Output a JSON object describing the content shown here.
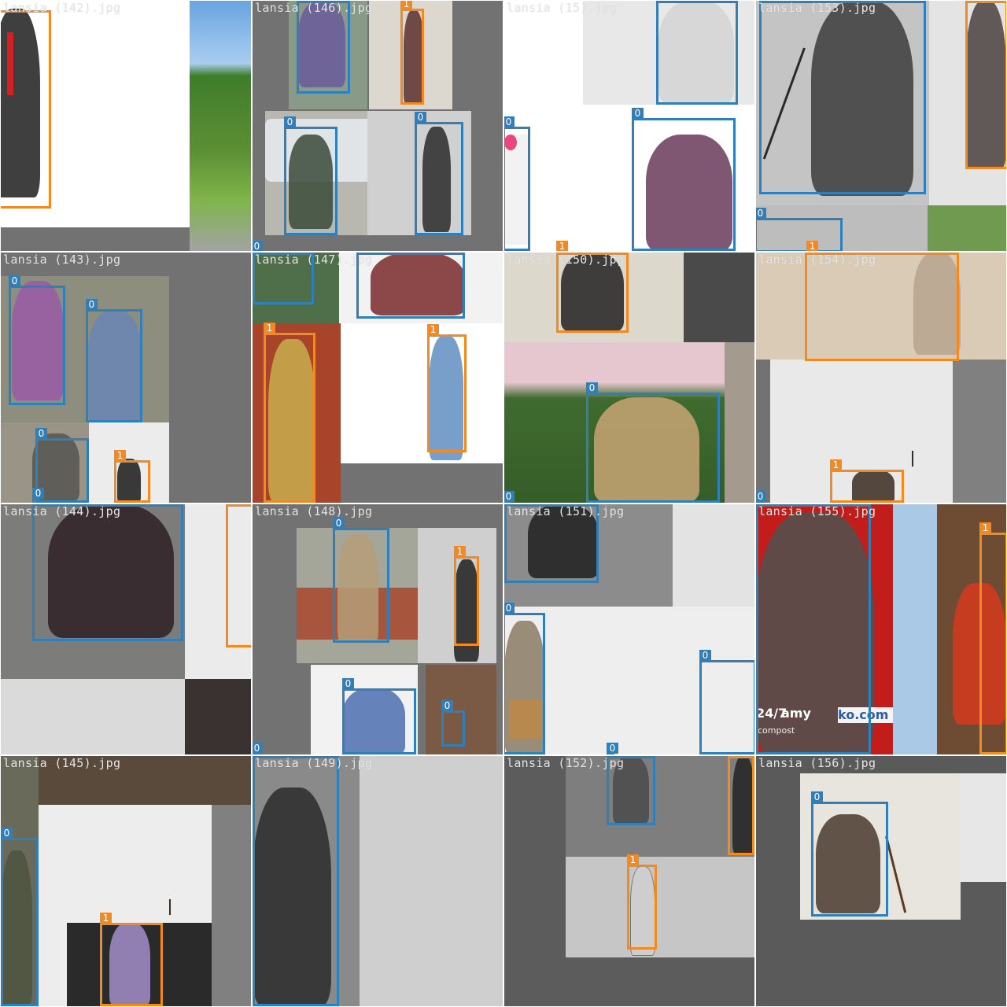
{
  "mosaic": {
    "tiles": [
      {
        "id": "t00",
        "label": "lansia (142).jpg",
        "tags": []
      },
      {
        "id": "t01",
        "label": "lansia (146).jpg",
        "tags": [
          "1",
          "0",
          "0",
          "0"
        ]
      },
      {
        "id": "t02",
        "label": "lansia (15).jpg",
        "tags": [
          "0",
          "0",
          "1"
        ]
      },
      {
        "id": "t03",
        "label": "lansia (153).jpg",
        "tags": [
          "0",
          "1"
        ]
      },
      {
        "id": "t10",
        "label": "lansia (143).jpg",
        "tags": [
          "0",
          "0",
          "0",
          "0",
          "1"
        ]
      },
      {
        "id": "t11",
        "label": "lansia (147).jpg",
        "tags": [
          "1",
          "1"
        ]
      },
      {
        "id": "t12",
        "label": "lansia (150).jpg",
        "tags": [
          "0",
          "0"
        ]
      },
      {
        "id": "t13",
        "label": "lansia (154).jpg",
        "tags": [
          "1",
          "0"
        ]
      },
      {
        "id": "t20",
        "label": "lansia (144).jpg",
        "tags": [
          "1"
        ]
      },
      {
        "id": "t21",
        "label": "lansia (148).jpg",
        "tags": [
          "0",
          "1",
          "0",
          "0",
          "0"
        ]
      },
      {
        "id": "t22",
        "label": "lansia (151).jpg",
        "tags": [
          "0",
          "0",
          "0"
        ]
      },
      {
        "id": "t23",
        "label": "lansia (155).jpg",
        "tags": [
          "1"
        ]
      },
      {
        "id": "t30",
        "label": "lansia (145).jpg",
        "tags": [
          "0",
          "1"
        ]
      },
      {
        "id": "t31",
        "label": "lansia (149).jpg",
        "tags": []
      },
      {
        "id": "t32",
        "label": "lansia (152).jpg",
        "tags": [
          "0",
          "1",
          "1"
        ]
      },
      {
        "id": "t33",
        "label": "lansia (156).jpg",
        "tags": [
          "0"
        ]
      }
    ]
  },
  "image_texts": {
    "t23_sign_a": "24/7",
    "t23_sign_b": "amy",
    "t23_sign_c": "ko.com",
    "t23_sign_d": "compost"
  },
  "colors": {
    "class_0": "#2f7fbb",
    "class_1": "#f28a21",
    "label_text": "#e6e6e6",
    "padding_gray": "#727272"
  }
}
